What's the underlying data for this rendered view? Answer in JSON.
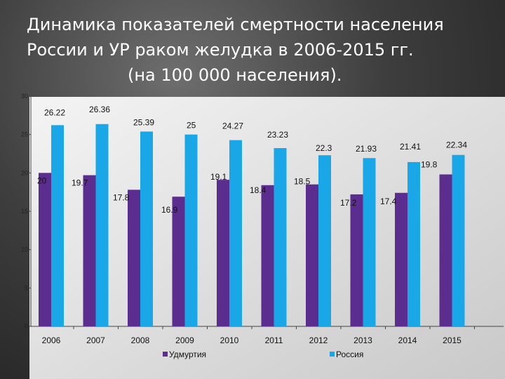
{
  "title": {
    "line1": "Динамика показателей смертности населения",
    "line2": "России и УР  раком желудка в 2006-2015 гг.",
    "line3": "(на 100 000 населения)."
  },
  "chart_data": {
    "type": "bar",
    "categories": [
      "2006",
      "2007",
      "2008",
      "2009",
      "2010",
      "2011",
      "2012",
      "2013",
      "2014",
      "2015"
    ],
    "series": [
      {
        "name": "Удмуртия",
        "color": "#5b2d8e",
        "values": [
          20,
          19.7,
          17.8,
          16.9,
          19.1,
          18.4,
          18.5,
          17.2,
          17.4,
          19.8
        ],
        "labels": [
          "20",
          "19.7",
          "17.8",
          "16.9",
          "19.1",
          "18.4",
          "18.5",
          "17.2",
          "17.4",
          "19.8"
        ]
      },
      {
        "name": "Россия",
        "color": "#1aa7e8",
        "values": [
          26.22,
          26.36,
          25.39,
          25,
          24.27,
          23.23,
          22.3,
          21.93,
          21.41,
          22.34
        ],
        "labels": [
          "26.22",
          "26.36",
          "25.39",
          "25",
          "24.27",
          "23.23",
          "22.3",
          "21.93",
          "21.41",
          "22.34"
        ]
      }
    ],
    "ylim": [
      0,
      30
    ],
    "yticks": [
      "0",
      "5",
      "10",
      "15",
      "20",
      "25",
      "30"
    ],
    "xlabel": "",
    "ylabel": "",
    "grid": false,
    "legend_position": "bottom"
  }
}
